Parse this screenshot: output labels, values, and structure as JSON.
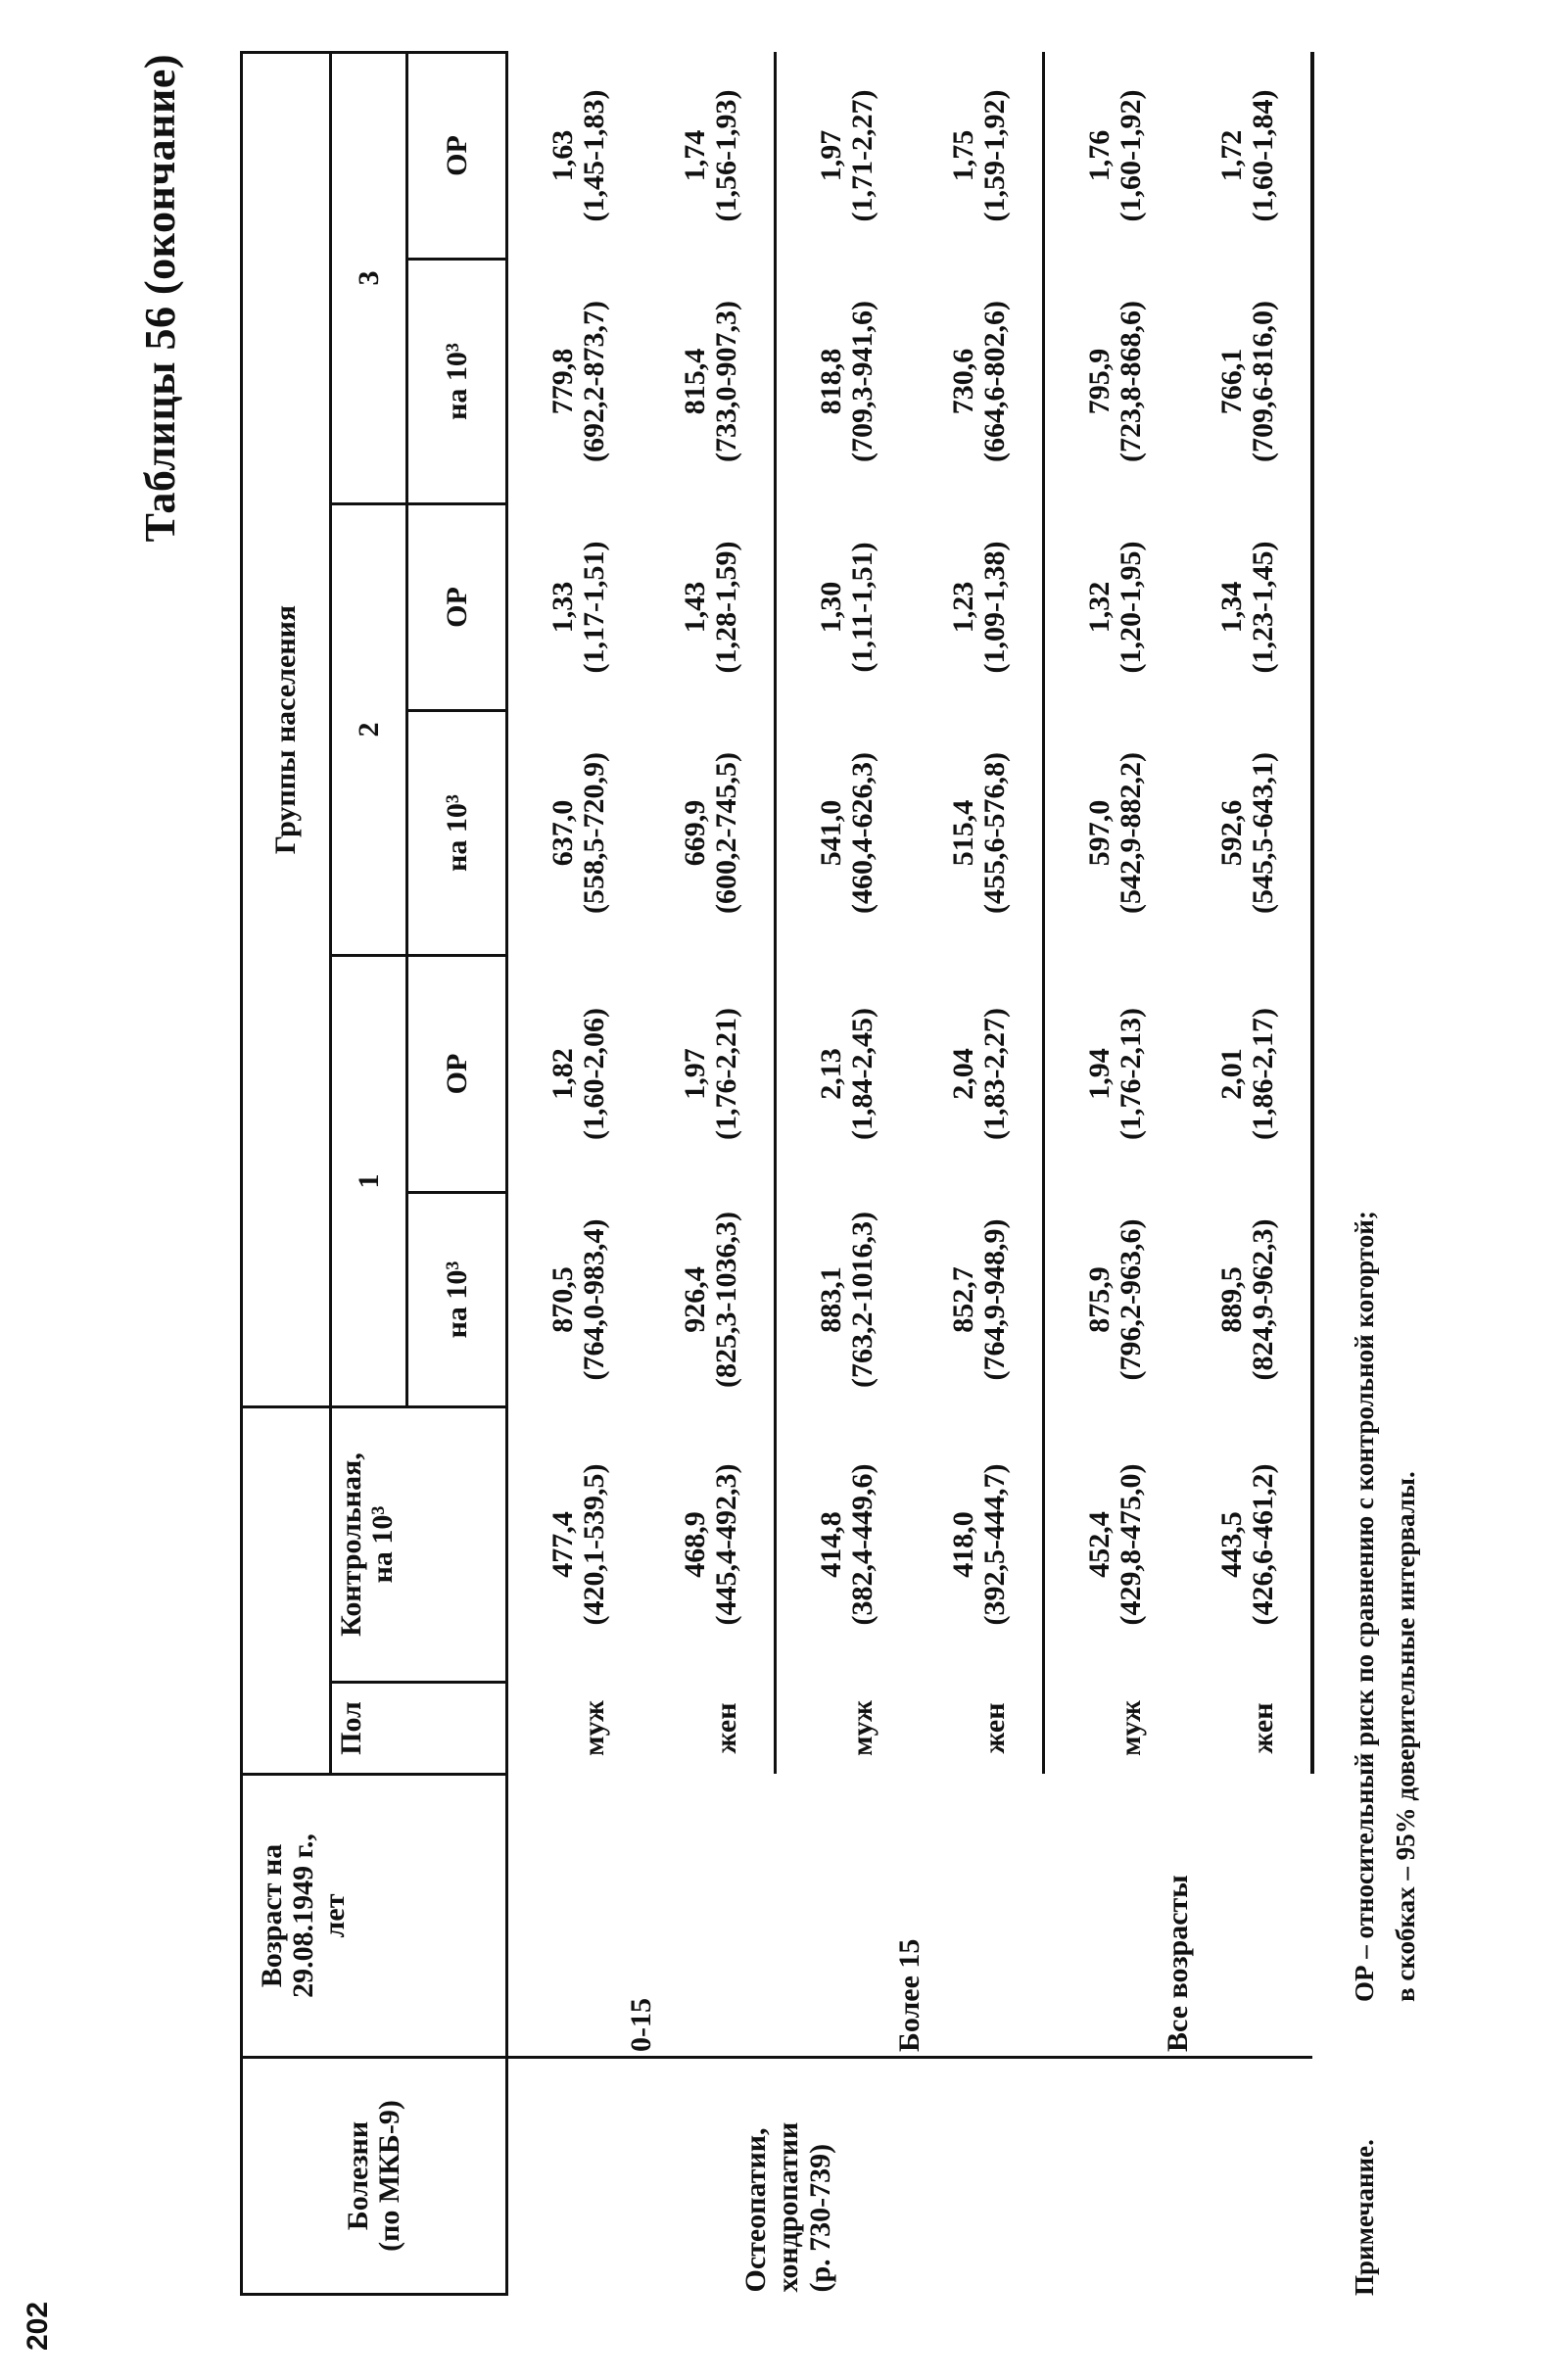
{
  "page_number": "202",
  "title": "Таблицы 56 (окончание)",
  "header": {
    "disease_line1": "Болезни",
    "disease_line2": "(по МКБ-9)",
    "age_line1": "Возраст на",
    "age_line2": "29.08.1949 г.,",
    "age_line3": "лет",
    "sex": "Пол",
    "control_line1": "Контрольная,",
    "control_line2": "на 10³",
    "groups_label": "Группы населения",
    "groups": [
      "1",
      "2",
      "3"
    ],
    "rate": "на 10³",
    "rr": "ОР"
  },
  "disease": [
    "Остеопатии,",
    "хондропатии",
    "(р. 730-739)"
  ],
  "rows": [
    {
      "age": "0-15",
      "sex": "муж",
      "cells": [
        {
          "v": "477,4",
          "ci": "(420,1-539,5)"
        },
        {
          "v": "870,5",
          "ci": "(764,0-983,4)"
        },
        {
          "v": "1,82",
          "ci": "(1,60-2,06)"
        },
        {
          "v": "637,0",
          "ci": "(558,5-720,9)"
        },
        {
          "v": "1,33",
          "ci": "(1,17-1,51)"
        },
        {
          "v": "779,8",
          "ci": "(692,2-873,7)"
        },
        {
          "v": "1,63",
          "ci": "(1,45-1,83)"
        }
      ]
    },
    {
      "sex": "жен",
      "cells": [
        {
          "v": "468,9",
          "ci": "(445,4-492,3)"
        },
        {
          "v": "926,4",
          "ci": "(825,3-1036,3)"
        },
        {
          "v": "1,97",
          "ci": "(1,76-2,21)"
        },
        {
          "v": "669,9",
          "ci": "(600,2-745,5)"
        },
        {
          "v": "1,43",
          "ci": "(1,28-1,59)"
        },
        {
          "v": "815,4",
          "ci": "(733,0-907,3)"
        },
        {
          "v": "1,74",
          "ci": "(1,56-1,93)"
        }
      ]
    },
    {
      "age": "Более 15",
      "sex": "муж",
      "cells": [
        {
          "v": "414,8",
          "ci": "(382,4-449,6)"
        },
        {
          "v": "883,1",
          "ci": "(763,2-1016,3)"
        },
        {
          "v": "2,13",
          "ci": "(1,84-2,45)"
        },
        {
          "v": "541,0",
          "ci": "(460,4-626,3)"
        },
        {
          "v": "1,30",
          "ci": "(1,11-1,51)"
        },
        {
          "v": "818,8",
          "ci": "(709,3-941,6)"
        },
        {
          "v": "1,97",
          "ci": "(1,71-2,27)"
        }
      ]
    },
    {
      "sex": "жен",
      "cells": [
        {
          "v": "418,0",
          "ci": "(392,5-444,7)"
        },
        {
          "v": "852,7",
          "ci": "(764,9-948,9)"
        },
        {
          "v": "2,04",
          "ci": "(1,83-2,27)"
        },
        {
          "v": "515,4",
          "ci": "(455,6-576,8)"
        },
        {
          "v": "1,23",
          "ci": "(1,09-1,38)"
        },
        {
          "v": "730,6",
          "ci": "(664,6-802,6)"
        },
        {
          "v": "1,75",
          "ci": "(1,59-1,92)"
        }
      ]
    },
    {
      "age": "Все возрасты",
      "sex": "муж",
      "cells": [
        {
          "v": "452,4",
          "ci": "(429,8-475,0)"
        },
        {
          "v": "875,9",
          "ci": "(796,2-963,6)"
        },
        {
          "v": "1,94",
          "ci": "(1,76-2,13)"
        },
        {
          "v": "597,0",
          "ci": "(542,9-882,2)"
        },
        {
          "v": "1,32",
          "ci": "(1,20-1,95)"
        },
        {
          "v": "795,9",
          "ci": "(723,8-868,6)"
        },
        {
          "v": "1,76",
          "ci": "(1,60-1,92)"
        }
      ]
    },
    {
      "sex": "жен",
      "cells": [
        {
          "v": "443,5",
          "ci": "(426,6-461,2)"
        },
        {
          "v": "889,5",
          "ci": "(824,9-962,3)"
        },
        {
          "v": "2,01",
          "ci": "(1,86-2,17)"
        },
        {
          "v": "592,6",
          "ci": "(545,5-643,1)"
        },
        {
          "v": "1,34",
          "ci": "(1,23-1,45)"
        },
        {
          "v": "766,1",
          "ci": "(709,6-816,0)"
        },
        {
          "v": "1,72",
          "ci": "(1,60-1,84)"
        }
      ]
    }
  ],
  "note": {
    "label": "Примечание.",
    "line1": "ОР – относительный риск по сравнению с контрольной когортой;",
    "line2": "в скобках – 95% доверительные интервалы."
  }
}
